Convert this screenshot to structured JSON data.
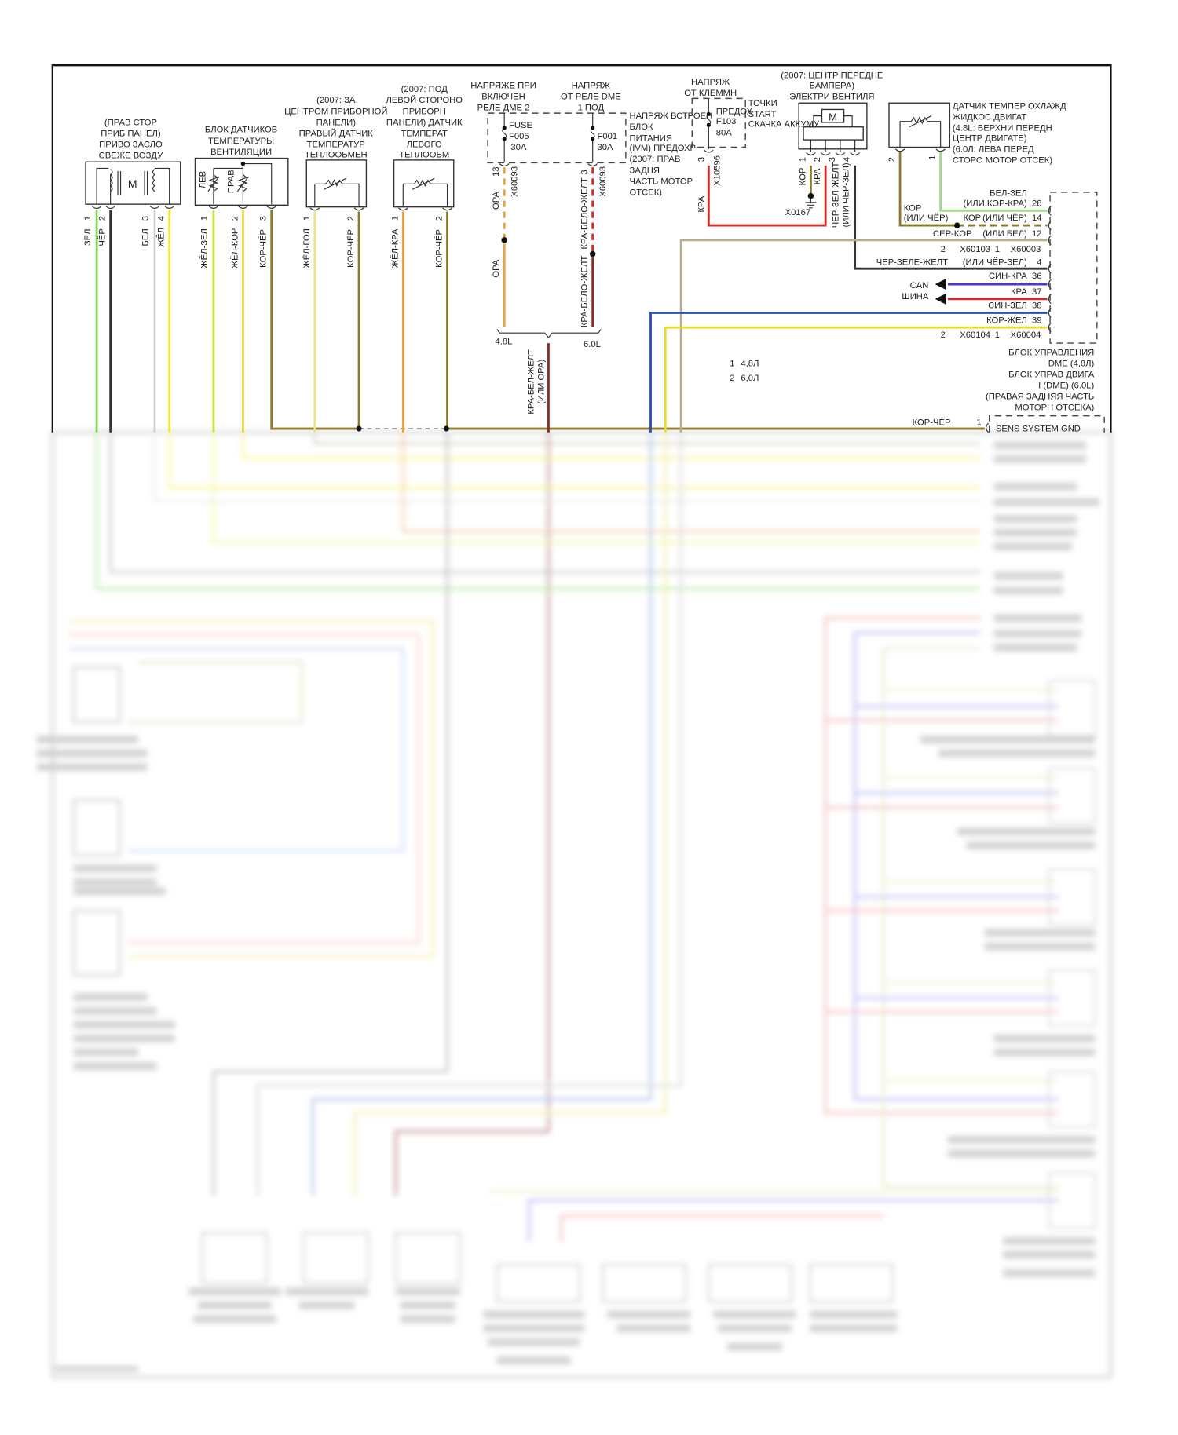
{
  "colors": {
    "green": "#7ed957",
    "black": "#333333",
    "white": "#cfcfcf",
    "yellow": "#f2ea2e",
    "yellow_green": "#cfe23e",
    "brown_black": "#8a7a2a",
    "yellow_blue": "#eee28a",
    "orange": "#e8a33d",
    "red": "#d62a2a",
    "dark_red": "#8b2a2a",
    "purple": "#5533cc",
    "blue": "#2a4fb0",
    "tan": "#b5ad8e",
    "light_green": "#9fd88a"
  },
  "fresh_air_actuator": {
    "title": [
      "(ПРАВ СТОР",
      "ПРИБ ПАНЕЛ)",
      "ПРИВО ЗАСЛО",
      "СВЕЖЕ ВОЗДУ"
    ],
    "motor": "M",
    "pins": [
      "1",
      "2",
      "3",
      "4"
    ],
    "wires": [
      "ЗЕЛ",
      "ЧЁР",
      "БЕЛ",
      "ЖЁЛ"
    ]
  },
  "vent_temp_sensors": {
    "title": [
      "БЛОК ДАТЧИКОВ",
      "ТЕМПЕРАТУРЫ",
      "ВЕНТИЛЯЦИИ"
    ],
    "left": "ЛЕВ",
    "right": "ПРАВ",
    "pins": [
      "1",
      "2",
      "3"
    ],
    "wires": [
      "ЖЁЛ-ЗЕЛ",
      "ЖЁЛ-КОР",
      "КОР-ЧЁР"
    ]
  },
  "right_heater_sensor": {
    "title": [
      "(2007: ЗА",
      "ЦЕНТРОМ ПРИБОРНОЙ",
      "ПАНЕЛИ)",
      "ПРАВЫЙ ДАТЧИК",
      "ТЕМПЕРАТУР",
      "ТЕПЛООБМЕН"
    ],
    "pins": [
      "1",
      "2"
    ],
    "wires": [
      "ЖЁЛ-ГОЛ",
      "КОР-ЧЁР"
    ]
  },
  "left_heater_sensor": {
    "title": [
      "(2007: ПОД",
      "ЛЕВОЙ СТОРОНО",
      "ПРИБОРН",
      "ПАНЕЛИ) ДАТЧИК",
      "ТЕМПЕРАТ",
      "ЛЕВОГО",
      "ТЕПЛООБМ"
    ],
    "pins": [
      "1",
      "2"
    ],
    "wires": [
      "ЖЁЛ-КРА",
      "КОР-ЧЁР"
    ]
  },
  "fuse_box": {
    "label_f005": [
      "НАПРЯЖЕ ПРИ",
      "ВКЛЮЧЕН",
      "РЕЛЕ ДМЕ 2"
    ],
    "label_f001": [
      "НАПРЯЖ",
      "ОТ РЕЛЕ DME",
      "1 ПОД"
    ],
    "f005": [
      "FUSE",
      "F005",
      "30A"
    ],
    "f001": [
      "F001",
      "30A"
    ],
    "description": [
      "НАПРЯЖ ВСТРОЕН",
      "БЛОК",
      "ПИТАНИЯ",
      "(IVM) ПРЕДОХР",
      "(2007: ПРАВ",
      "ЗАДНЯ",
      "ЧАСТЬ МОТОР",
      "ОТСЕК)"
    ],
    "pin_f005": "13",
    "conn_f005": "X60093",
    "wire_f005": "ОРА",
    "wire_f005_b": "ОРА",
    "pin_f001": "3",
    "conn_f001": "X60093",
    "wire_f001": "КРА-БЕЛО-ЖЕЛТ",
    "wire_f001_b": "КРА-БЕЛО-ЖЕЛТ",
    "variant_48": "4.8L",
    "variant_60": "6.0L",
    "merged_wire": [
      "КРА-БЕЛ-ЖЕЛТ",
      "(ИЛИ ОРА)"
    ]
  },
  "jump_start": {
    "label": [
      "НАПРЯЖ",
      "ОТ КЛЕММН"
    ],
    "fuse": [
      "ПРЕДОХ",
      "F103",
      "80A"
    ],
    "points": [
      "ТОЧКИ",
      "START",
      "СКАЧКА АККУМУ"
    ],
    "pin": "3",
    "conn": "X10596",
    "wire": "КРА"
  },
  "fan": {
    "title": [
      "(2007: ЦЕНТР ПЕРЕДНЕ",
      "БАМПЕРА)",
      "ЭЛЕКТРИ ВЕНТИЛЯ"
    ],
    "motor": "M",
    "pins": [
      "1",
      "2",
      "3",
      "4"
    ],
    "wires": [
      "КОР",
      "КРА",
      "ЧЕР-ЗЕЛ-ЖЕЛТ",
      "(ИЛИ ЧЕР-ЗЕЛ)"
    ],
    "ground": "X0167"
  },
  "coolant_sensor": {
    "title": [
      "ДАТЧИК ТЕМПЕР ОХЛАЖД",
      "ЖИДКОС ДВИГАТ",
      "(4.8L: ВЕРХНИ ПЕРЕДН",
      "ЦЕНТР ДВИГАТЕ)",
      "(6.0Л: ЛЕВА ПЕРЕД",
      "СТОРО МОТОР ОТСЕК)"
    ],
    "pins": [
      "2",
      "1"
    ],
    "wire_left": [
      "КОР",
      "(ИЛИ ЧЁР)"
    ]
  },
  "dme": {
    "rows": [
      {
        "wire": "БЕЛ-ЗЕЛ",
        "alt": "(ИЛИ КОР-КРА)",
        "pin": "28"
      },
      {
        "wire": "КОР",
        "alt": "(ИЛИ ЧЁР)",
        "pin": "14"
      },
      {
        "wire": "СЕР-КОР",
        "alt": "(ИЛИ БЕЛ)",
        "pin": "12"
      },
      {
        "wire": "ЧЕР-ЗЕЛЕ-ЖЕЛТ",
        "alt": "(ИЛИ ЧЁР-ЗЕЛ)",
        "pin": "4"
      },
      {
        "wire": "СИН-КРА",
        "alt": "",
        "pin": "36"
      },
      {
        "wire": "КРА",
        "alt": "",
        "pin": "37"
      },
      {
        "wire": "СИН-ЗЕЛ",
        "alt": "",
        "pin": "38"
      },
      {
        "wire": "КОР-ЖЁЛ",
        "alt": "",
        "pin": "39"
      }
    ],
    "conn_a": [
      "2",
      "X60103",
      "1",
      "X60003"
    ],
    "conn_b": [
      "2",
      "X60104",
      "1",
      "X60004"
    ],
    "can": [
      "CAN",
      "ШИНА"
    ],
    "title": [
      "БЛОК УПРАВЛЕНИЯ",
      "DME (4,8Л)",
      "БЛОК УПРАВ ДВИГА",
      "I (DME) (6.0L)",
      "(ПРАВАЯ ЗАДНЯЯ ЧАСТЬ",
      "МОТОРН ОТСЕКА)"
    ]
  },
  "legend": [
    {
      "num": "1",
      "text": "4,8Л"
    },
    {
      "num": "2",
      "text": "6,0Л"
    }
  ],
  "sensor_ground": {
    "wire": "КОР-ЧЁР",
    "pin": "1",
    "label": "SENS SYSTEM GND"
  }
}
